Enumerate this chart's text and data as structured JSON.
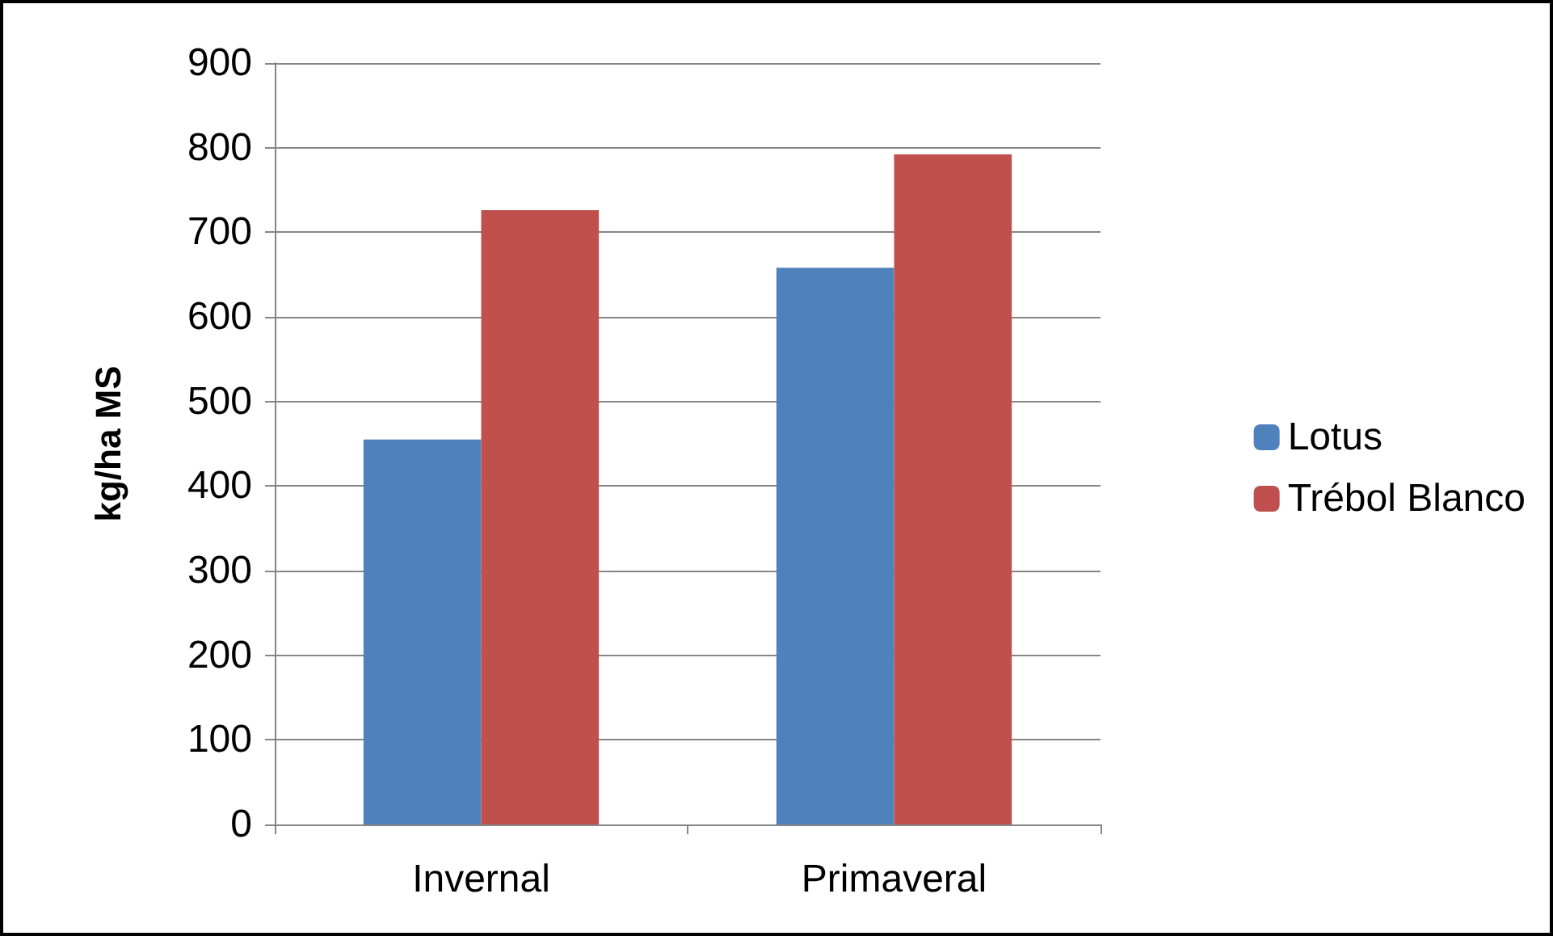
{
  "chart_data": {
    "type": "bar",
    "ylabel": "kg/ha MS",
    "categories": [
      "Invernal",
      "Primaveral"
    ],
    "series": [
      {
        "name": "Lotus",
        "color": "#4f81bd",
        "values": [
          455,
          658
        ]
      },
      {
        "name": "Trébol Blanco",
        "color": "#c0504d",
        "values": [
          726,
          792
        ]
      }
    ],
    "ylim": [
      0,
      900
    ],
    "yticks": [
      0,
      100,
      200,
      300,
      400,
      500,
      600,
      700,
      800,
      900
    ],
    "grid": "y",
    "legend": "right"
  }
}
